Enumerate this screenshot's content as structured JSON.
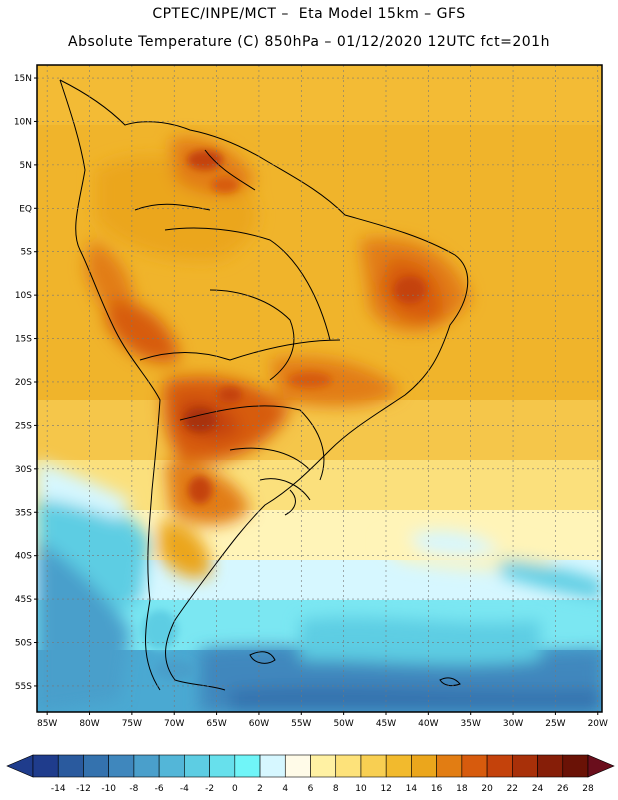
{
  "header": {
    "line1": "CPTEC/INPE/MCT –  Eta Model 15km – GFS",
    "line2": "Absolute Temperature (C) 850hPa – 01/12/2020 12UTC fct=201h"
  },
  "map": {
    "lat_labels": [
      "15N",
      "10N",
      "5N",
      "EQ",
      "5S",
      "10S",
      "15S",
      "20S",
      "25S",
      "30S",
      "35S",
      "40S",
      "45S",
      "50S",
      "55S"
    ],
    "lat_values": [
      15,
      10,
      5,
      0,
      -5,
      -10,
      -15,
      -20,
      -25,
      -30,
      -35,
      -40,
      -45,
      -50,
      -55
    ],
    "lon_labels": [
      "85W",
      "80W",
      "75W",
      "70W",
      "65W",
      "60W",
      "55W",
      "50W",
      "45W",
      "40W",
      "35W",
      "30W",
      "25W",
      "20W"
    ],
    "lon_values": [
      -85,
      -80,
      -75,
      -70,
      -65,
      -60,
      -55,
      -50,
      -45,
      -40,
      -35,
      -30,
      -25,
      -20
    ],
    "lat_range": [
      -58,
      16.5
    ],
    "lon_range": [
      -86.2,
      -19.5
    ]
  },
  "colorbar": {
    "labels": [
      "-14",
      "-12",
      "-10",
      "-8",
      "-6",
      "-4",
      "-2",
      "0",
      "2",
      "4",
      "6",
      "8",
      "10",
      "12",
      "14",
      "16",
      "18",
      "20",
      "22",
      "24",
      "26",
      "28"
    ],
    "colors": [
      "#1f3c8c",
      "#2a5a9e",
      "#3472ae",
      "#3f87bd",
      "#4a9fcb",
      "#53b6d8",
      "#5dcde3",
      "#67e0ec",
      "#70f5f8",
      "#d6f7ff",
      "#fffbe8",
      "#fff1a3",
      "#fde27a",
      "#f8cf52",
      "#f2ba2d",
      "#eba61c",
      "#e27d13",
      "#d75b0d",
      "#c4420b",
      "#a83009",
      "#861e08",
      "#6a1206"
    ]
  }
}
